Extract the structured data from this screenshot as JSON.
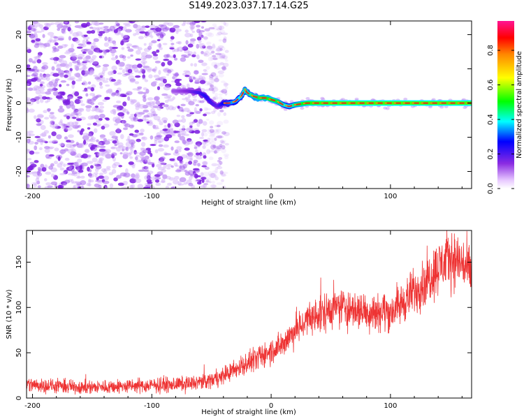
{
  "title": "S149.2023.037.17.14.G25",
  "colors": {
    "noise": "#8a2be2",
    "signal_line": "#ee2222",
    "snr_trace": "#ee3333",
    "axis": "#000000"
  },
  "chart_data": [
    {
      "type": "heatmap",
      "xlabel": "Height of straight line (km)",
      "ylabel": "Frequency (Hz)",
      "xlim": [
        -205,
        168
      ],
      "ylim": [
        -25,
        24
      ],
      "xticks": [
        -200,
        -100,
        0,
        100
      ],
      "yticks": [
        -20,
        -10,
        0,
        10,
        20
      ],
      "grid": false,
      "colorbar": {
        "label": "Normalized spectral amplitude",
        "range": [
          0.0,
          0.97
        ],
        "ticks": [
          "0.0",
          "0.2",
          "0.4",
          "0.6",
          "0.8"
        ],
        "colormap": "rainbow (purple-blue-cyan-green-yellow-red-pink)"
      },
      "noise_region_x": [
        -205,
        -45
      ],
      "signal_track": {
        "x": [
          -80,
          -70,
          -60,
          -55,
          -50,
          -45,
          -40,
          -35,
          -30,
          -25,
          -22,
          -20,
          -15,
          -10,
          -5,
          0,
          5,
          10,
          15,
          20,
          30,
          40,
          60,
          80,
          100,
          120,
          140,
          168
        ],
        "y": [
          3.5,
          3.5,
          3,
          2,
          0,
          -1,
          0,
          0,
          0.5,
          2,
          4,
          3,
          2,
          1.5,
          1.5,
          1,
          0.5,
          -0.5,
          -1,
          -0.5,
          0,
          0,
          0,
          0,
          0,
          0,
          0,
          0
        ],
        "amplitude": [
          0.2,
          0.25,
          0.35,
          0.4,
          0.35,
          0.3,
          0.45,
          0.55,
          0.6,
          0.65,
          0.7,
          0.72,
          0.75,
          0.8,
          0.8,
          0.82,
          0.8,
          0.7,
          0.65,
          0.75,
          0.85,
          0.88,
          0.9,
          0.9,
          0.9,
          0.9,
          0.9,
          0.9
        ]
      }
    },
    {
      "type": "line",
      "xlabel": "Height of straight line (km)",
      "ylabel": "SNR (10 * v/v)",
      "xlim": [
        -205,
        168
      ],
      "ylim": [
        0,
        185
      ],
      "xticks": [
        -200,
        -100,
        0,
        100
      ],
      "yticks": [
        0,
        50,
        100,
        150
      ],
      "grid": false,
      "series": [
        {
          "x": [
            -205,
            -180,
            -150,
            -120,
            -100,
            -80,
            -60,
            -50,
            -40,
            -30,
            -20,
            -10,
            0,
            10,
            20,
            30,
            40,
            50,
            60,
            70,
            80,
            90,
            100,
            110,
            120,
            130,
            140,
            150,
            160,
            168
          ],
          "y": [
            15,
            13,
            12,
            13,
            14,
            15,
            17,
            20,
            25,
            32,
            38,
            45,
            52,
            60,
            75,
            85,
            92,
            98,
            100,
            98,
            95,
            97,
            95,
            105,
            118,
            130,
            145,
            155,
            150,
            135
          ]
        }
      ]
    }
  ]
}
